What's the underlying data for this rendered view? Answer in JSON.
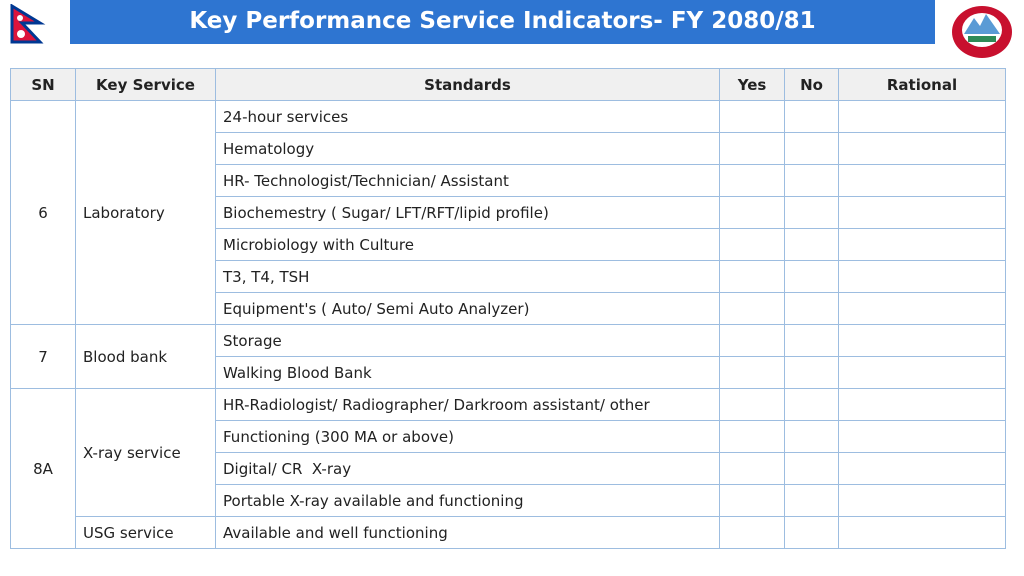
{
  "header": {
    "title": "Key Performance Service Indicators- FY 2080/81"
  },
  "table": {
    "columns": [
      "SN",
      "Key Service",
      "Standards",
      "Yes",
      "No",
      "Rational"
    ],
    "groups": [
      {
        "sn": "6",
        "services": [
          {
            "name": "Laboratory",
            "standards": [
              "24-hour services",
              "Hematology",
              "HR- Technologist/Technician/ Assistant",
              "Biochemestry ( Sugar/ LFT/RFT/lipid profile)",
              "Microbiology with Culture",
              "T3, T4, TSH",
              "Equipment's ( Auto/ Semi Auto Analyzer)"
            ]
          }
        ]
      },
      {
        "sn": "7",
        "services": [
          {
            "name": "Blood bank",
            "standards": [
              "Storage",
              "Walking Blood Bank"
            ]
          }
        ]
      },
      {
        "sn": "8A",
        "services": [
          {
            "name": "X-ray service",
            "standards": [
              "HR-Radiologist/ Radiographer/ Darkroom assistant/ other",
              "Functioning (300 MA or above)",
              "Digital/ CR  X-ray",
              "Portable X-ray available and functioning"
            ]
          },
          {
            "name": "USG service",
            "standards": [
              "Available and well functioning"
            ]
          }
        ]
      }
    ]
  }
}
